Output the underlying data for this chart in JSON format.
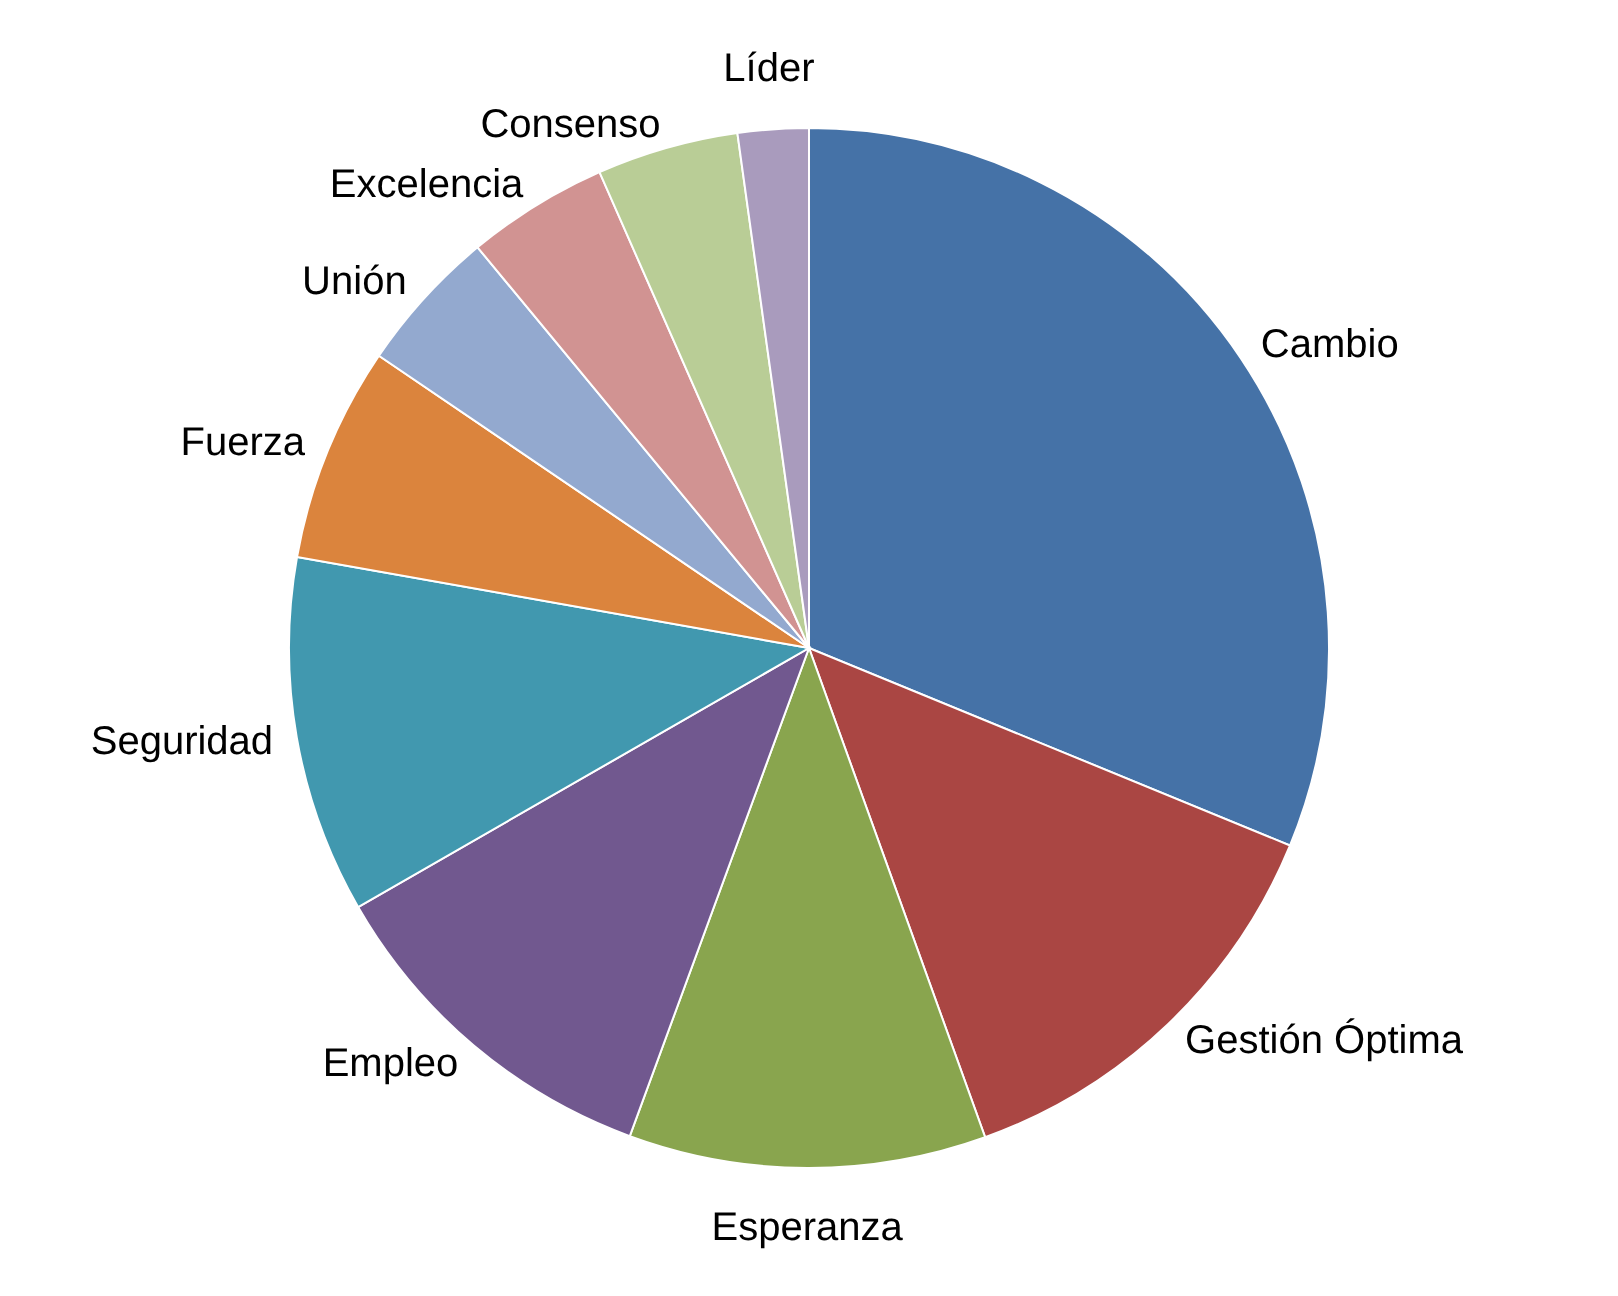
{
  "chart_data": {
    "type": "pie",
    "categories": [
      "Cambio",
      "Gestión Óptima",
      "Esperanza",
      "Empleo",
      "Seguridad",
      "Fuerza",
      "Unión",
      "Excelencia",
      "Consenso",
      "Líder"
    ],
    "values": [
      31.2,
      13.3,
      11.1,
      11.1,
      11.1,
      6.7,
      4.5,
      4.4,
      4.4,
      2.2
    ],
    "colors": [
      "#4572a7",
      "#aa4643",
      "#89a54e",
      "#71588f",
      "#4198af",
      "#db843d",
      "#93a9cf",
      "#d19392",
      "#b9cd96",
      "#a99bbd"
    ]
  }
}
